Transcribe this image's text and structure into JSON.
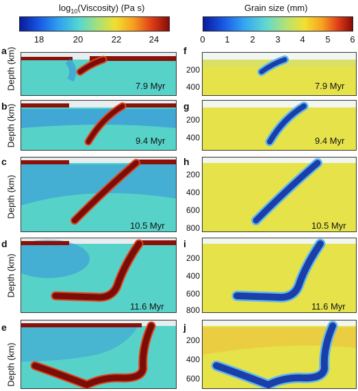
{
  "colorbars": {
    "viscosity": {
      "title_prefix": "log",
      "title_sub": "10",
      "title_suffix": "(Viscosity) (Pa s)",
      "ticks": [
        "18",
        "20",
        "22",
        "24"
      ]
    },
    "grain": {
      "title": "Grain size (mm)",
      "ticks": [
        "0",
        "1",
        "2",
        "3",
        "4",
        "5",
        "6"
      ]
    }
  },
  "y_axis_label": "Depth (km)",
  "panels": [
    {
      "letter": "a",
      "time": "7.9 Myr"
    },
    {
      "letter": "b",
      "time": "9.4 Myr"
    },
    {
      "letter": "c",
      "time": "10.5 Myr"
    },
    {
      "letter": "d",
      "time": "11.6 Myr"
    },
    {
      "letter": "e",
      "time": ""
    },
    {
      "letter": "f",
      "time": "7.9 Myr"
    },
    {
      "letter": "g",
      "time": "9.4 Myr"
    },
    {
      "letter": "h",
      "time": "10.5 Myr"
    },
    {
      "letter": "i",
      "time": "11.6 Myr"
    },
    {
      "letter": "j",
      "time": ""
    }
  ],
  "depth_ticks": {
    "f": [
      "200",
      "400"
    ],
    "g": [
      "200",
      "400"
    ],
    "h": [
      "200",
      "400",
      "600",
      "800"
    ],
    "i": [
      "200",
      "400",
      "600",
      "800"
    ],
    "j": [
      "200",
      "400",
      "600"
    ]
  },
  "colors": {
    "viscosity_background": "#57d2c8",
    "viscosity_mantle_dark": "#2f84e0",
    "slab_core": "#7a0d08",
    "slab_edge": "#e0441c",
    "grain_background": "#e6e24a",
    "grain_slab": "#1a3fa8",
    "grain_slab_edge": "#5fb8ef"
  }
}
